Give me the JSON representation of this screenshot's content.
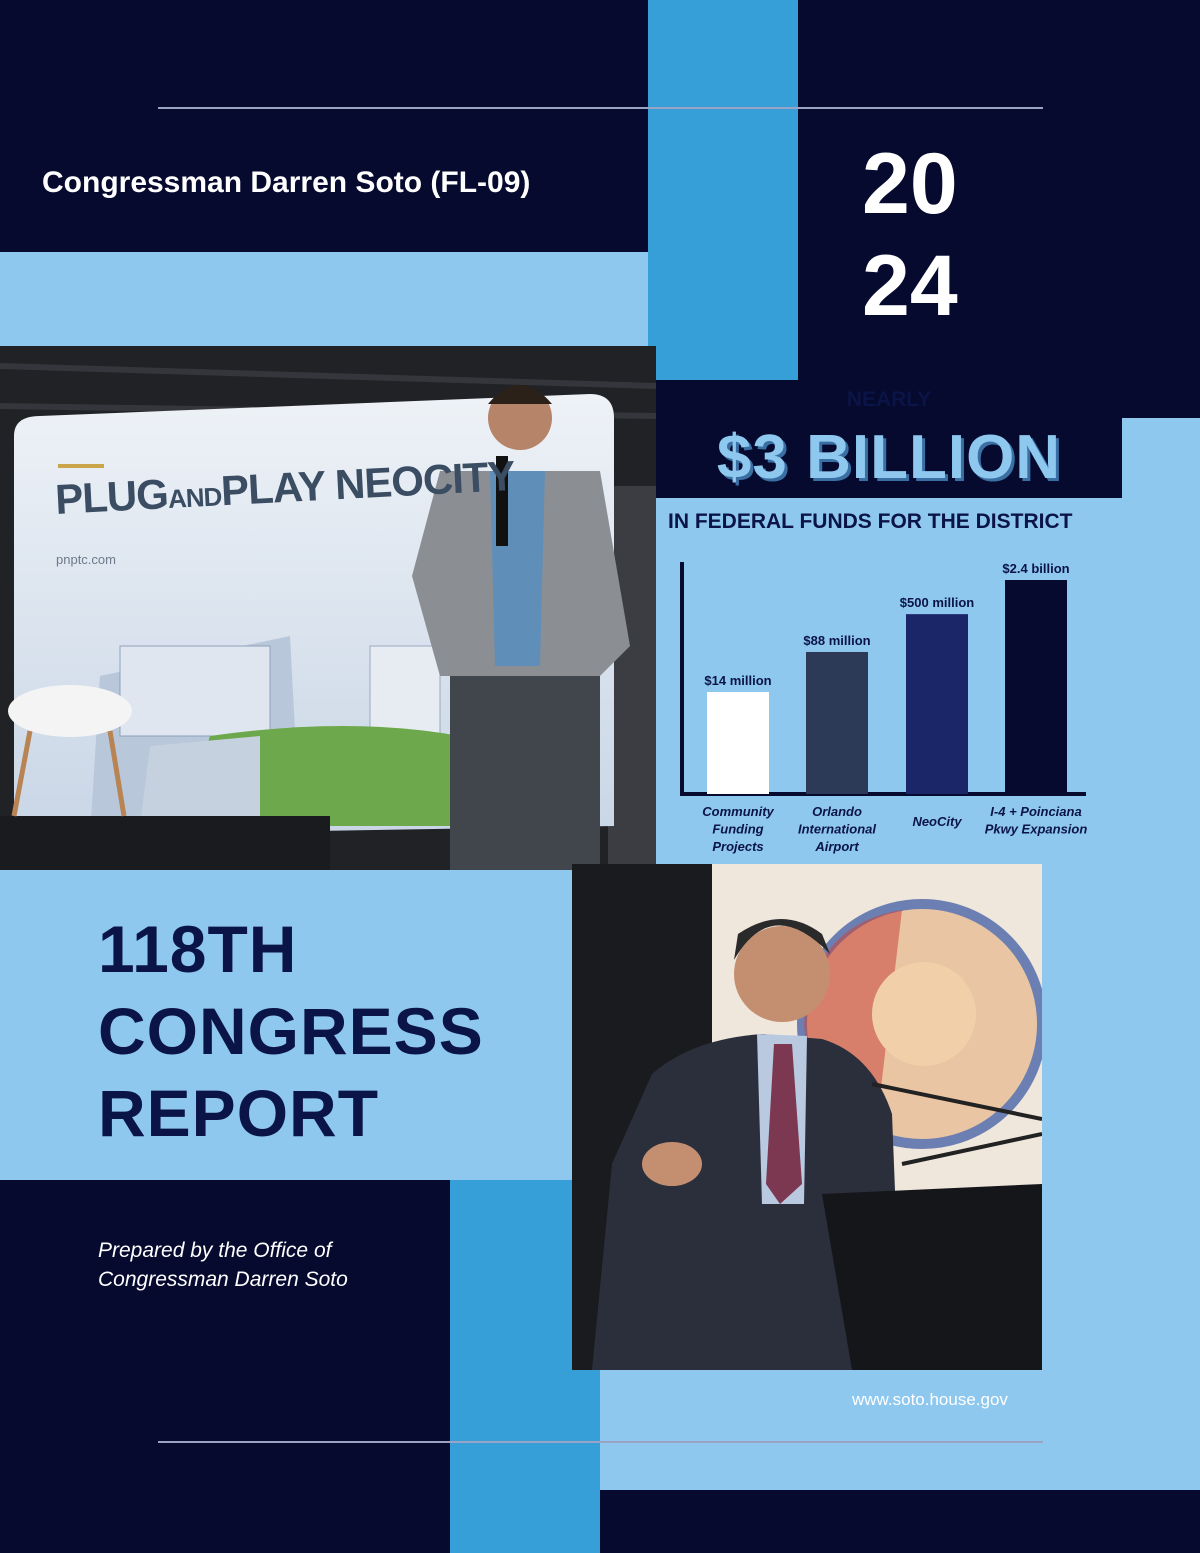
{
  "header": {
    "congressman_line": "Congressman Darren Soto (FL-09)",
    "year_top": "20",
    "year_bottom": "24"
  },
  "photo_top": {
    "backdrop_title_a": "PLUG",
    "backdrop_title_b": "AND",
    "backdrop_title_c": "PLAY NEOCITY",
    "backdrop_url": "pnptc.com"
  },
  "funding": {
    "kicker": "NEARLY",
    "headline": "$3 BILLION",
    "subhead": "IN FEDERAL FUNDS FOR THE DISTRICT"
  },
  "chart_data": {
    "type": "bar",
    "categories": [
      [
        "Community",
        "Funding",
        "Projects"
      ],
      [
        "Orlando",
        "International",
        "Airport"
      ],
      [
        "NeoCity"
      ],
      [
        "I-4 + Poinciana",
        "Pkwy Expansion"
      ]
    ],
    "values": [
      14,
      88,
      500,
      2400
    ],
    "units": "million USD",
    "data_labels": [
      "$14 million",
      "$88 million",
      "$500 million",
      "$2.4 billion"
    ],
    "colors": [
      "#ffffff",
      "#2d3a57",
      "#1b2668",
      "#050a2e"
    ],
    "scale": "nonlinear",
    "grid": false
  },
  "report": {
    "line1": "118TH",
    "line2": "CONGRESS",
    "line3": "REPORT"
  },
  "prepared_by": {
    "line1": "Prepared by the Office of",
    "line2": "Congressman Darren Soto"
  },
  "footer": {
    "url": "www.soto.house.gov"
  },
  "colors": {
    "navy": "#050a2e",
    "light_blue": "#8ec8ee",
    "mid_blue": "#379fd8"
  }
}
